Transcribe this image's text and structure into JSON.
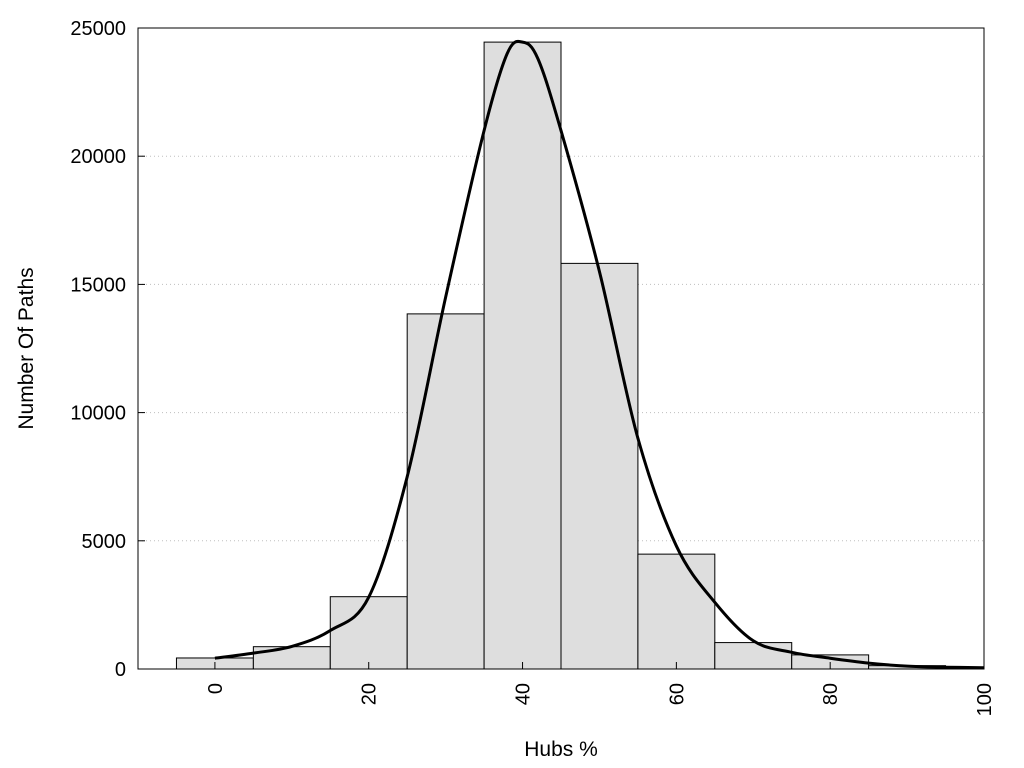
{
  "chart_data": {
    "type": "bar",
    "xlabel": "Hubs %",
    "ylabel": "Number Of Paths",
    "xlim": [
      -10,
      100
    ],
    "ylim": [
      0,
      25000
    ],
    "grid": "horizontal dotted",
    "bin_width": 10,
    "bins": [
      {
        "center": 0,
        "value": 430
      },
      {
        "center": 10,
        "value": 870
      },
      {
        "center": 20,
        "value": 2820
      },
      {
        "center": 30,
        "value": 13850
      },
      {
        "center": 40,
        "value": 24450
      },
      {
        "center": 50,
        "value": 15820
      },
      {
        "center": 60,
        "value": 4480
      },
      {
        "center": 70,
        "value": 1030
      },
      {
        "center": 80,
        "value": 550
      },
      {
        "center": 90,
        "value": 130
      }
    ],
    "curve": {
      "x": [
        0,
        5,
        10,
        15,
        20,
        25,
        30,
        35,
        38,
        40,
        42,
        45,
        50,
        55,
        60,
        65,
        70,
        75,
        80,
        85,
        90,
        95,
        100
      ],
      "y": [
        420,
        620,
        880,
        1500,
        2800,
        7500,
        14500,
        21000,
        24000,
        24450,
        23800,
        21000,
        15500,
        9000,
        4800,
        2600,
        1100,
        650,
        420,
        230,
        110,
        70,
        50
      ]
    },
    "xticks": [
      0,
      20,
      40,
      60,
      80,
      100
    ],
    "yticks": [
      0,
      5000,
      10000,
      15000,
      20000,
      25000
    ],
    "colors": {
      "bar_fill": "#dedede",
      "bar_stroke": "#000000",
      "curve": "#000000",
      "grid": "#bfbfbf"
    }
  }
}
